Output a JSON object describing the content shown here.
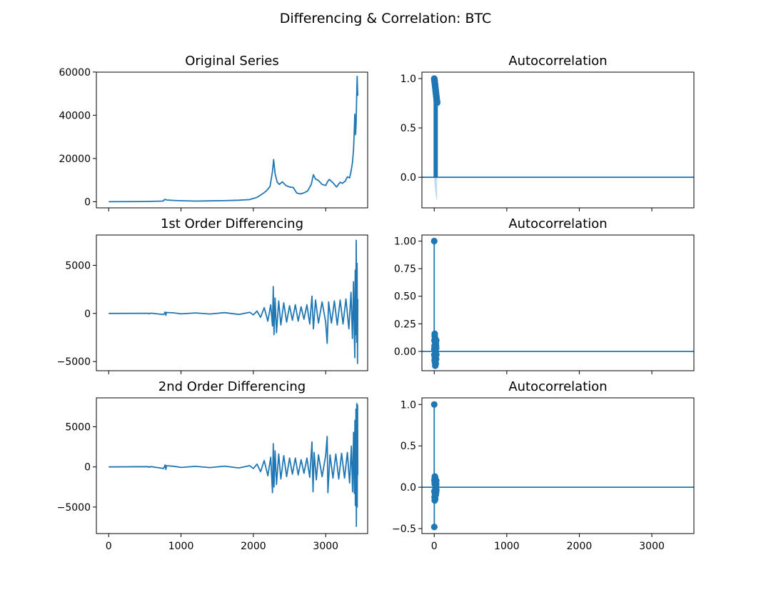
{
  "figure": {
    "suptitle": "Differencing & Correlation: BTC",
    "series_color": "#1f77b4",
    "band_color": "#aed1e6"
  },
  "chart_data": [
    {
      "id": "orig",
      "type": "line",
      "title": "Original Series",
      "xlim": [
        -170,
        3580
      ],
      "ylim": [
        -2850,
        59950
      ],
      "yticks": [
        0,
        20000,
        40000,
        60000
      ],
      "ytick_labels": [
        "0",
        "20000",
        "40000",
        "60000"
      ],
      "xticks": [
        0,
        1000,
        2000,
        3000
      ],
      "xtick_labels": [],
      "series_points": [
        [
          0,
          0
        ],
        [
          500,
          100
        ],
        [
          750,
          300
        ],
        [
          780,
          1100
        ],
        [
          800,
          800
        ],
        [
          900,
          600
        ],
        [
          1000,
          450
        ],
        [
          1200,
          300
        ],
        [
          1400,
          380
        ],
        [
          1600,
          500
        ],
        [
          1800,
          700
        ],
        [
          1950,
          1000
        ],
        [
          2050,
          2000
        ],
        [
          2120,
          3500
        ],
        [
          2180,
          5000
        ],
        [
          2230,
          7000
        ],
        [
          2265,
          14000
        ],
        [
          2280,
          19500
        ],
        [
          2300,
          13000
        ],
        [
          2330,
          9000
        ],
        [
          2360,
          8000
        ],
        [
          2400,
          9200
        ],
        [
          2450,
          7500
        ],
        [
          2500,
          6800
        ],
        [
          2550,
          6600
        ],
        [
          2600,
          4000
        ],
        [
          2650,
          3600
        ],
        [
          2700,
          4100
        ],
        [
          2750,
          5000
        ],
        [
          2800,
          8000
        ],
        [
          2830,
          12500
        ],
        [
          2860,
          10500
        ],
        [
          2900,
          9800
        ],
        [
          2950,
          8000
        ],
        [
          3000,
          7500
        ],
        [
          3030,
          9500
        ],
        [
          3050,
          10300
        ],
        [
          3100,
          8800
        ],
        [
          3150,
          6800
        ],
        [
          3200,
          9000
        ],
        [
          3230,
          8500
        ],
        [
          3270,
          9500
        ],
        [
          3300,
          11500
        ],
        [
          3330,
          11000
        ],
        [
          3350,
          14000
        ],
        [
          3370,
          18000
        ],
        [
          3385,
          24000
        ],
        [
          3395,
          33000
        ],
        [
          3402,
          40500
        ],
        [
          3408,
          36000
        ],
        [
          3413,
          31000
        ],
        [
          3420,
          36000
        ],
        [
          3428,
          48000
        ],
        [
          3435,
          58000
        ],
        [
          3440,
          52000
        ],
        [
          3444,
          49000
        ]
      ]
    },
    {
      "id": "acf_orig",
      "type": "stem",
      "title": "Autocorrelation",
      "xlim": [
        -170,
        3580
      ],
      "ylim": [
        -0.31,
        1.065
      ],
      "yticks": [
        0,
        0.5,
        1
      ],
      "ytick_labels": [
        "0.0",
        "0.5",
        "1.0"
      ],
      "xticks": [
        0,
        1000,
        2000,
        3000
      ],
      "xtick_labels": [],
      "acf_values": [
        1.0,
        0.995,
        0.99,
        0.985,
        0.98,
        0.975,
        0.97,
        0.965,
        0.955,
        0.95,
        0.945,
        0.94,
        0.93,
        0.925,
        0.92,
        0.91,
        0.905,
        0.9,
        0.89,
        0.885,
        0.88,
        0.87,
        0.865,
        0.86,
        0.85,
        0.845,
        0.84,
        0.83,
        0.825,
        0.82,
        0.81,
        0.805,
        0.8,
        0.79,
        0.785,
        0.78,
        0.775,
        0.77,
        0.765,
        0.76,
        0.755
      ],
      "conf_band_lower": [
        -0.03,
        -0.04,
        -0.05,
        -0.06,
        -0.07,
        -0.08,
        -0.09,
        -0.1,
        -0.11,
        -0.12,
        -0.125,
        -0.13,
        -0.14,
        -0.145,
        -0.15,
        -0.155,
        -0.16,
        -0.165,
        -0.17,
        -0.175,
        -0.18,
        -0.185,
        -0.19,
        -0.195,
        -0.2,
        -0.2,
        -0.205,
        -0.21,
        -0.21,
        -0.215,
        -0.215,
        -0.22,
        -0.22,
        -0.225,
        -0.225,
        -0.23,
        -0.23,
        -0.23,
        -0.235,
        -0.235,
        -0.24
      ]
    },
    {
      "id": "diff1",
      "type": "line",
      "title": "1st Order Differencing",
      "xlim": [
        -170,
        3580
      ],
      "ylim": [
        -5950,
        8150
      ],
      "yticks": [
        -5000,
        0,
        5000
      ],
      "ytick_labels": [
        "−5000",
        "0",
        "5000"
      ],
      "xticks": [
        0,
        1000,
        2000,
        3000
      ],
      "xtick_labels": [],
      "series_points": [
        [
          0,
          0
        ],
        [
          550,
          20
        ],
        [
          560,
          -40
        ],
        [
          580,
          30
        ],
        [
          760,
          -120
        ],
        [
          780,
          150
        ],
        [
          790,
          -200
        ],
        [
          800,
          100
        ],
        [
          900,
          60
        ],
        [
          1000,
          -40
        ],
        [
          1200,
          50
        ],
        [
          1400,
          -60
        ],
        [
          1600,
          80
        ],
        [
          1800,
          -100
        ],
        [
          1950,
          120
        ],
        [
          2000,
          -150
        ],
        [
          2050,
          250
        ],
        [
          2100,
          -400
        ],
        [
          2150,
          600
        ],
        [
          2200,
          -800
        ],
        [
          2240,
          900
        ],
        [
          2265,
          -1300
        ],
        [
          2275,
          2800
        ],
        [
          2285,
          -2200
        ],
        [
          2300,
          1600
        ],
        [
          2320,
          -2000
        ],
        [
          2350,
          1300
        ],
        [
          2380,
          -1200
        ],
        [
          2420,
          1100
        ],
        [
          2460,
          -900
        ],
        [
          2500,
          800
        ],
        [
          2540,
          -700
        ],
        [
          2580,
          900
        ],
        [
          2620,
          -800
        ],
        [
          2660,
          700
        ],
        [
          2700,
          -600
        ],
        [
          2740,
          900
        ],
        [
          2780,
          -1100
        ],
        [
          2810,
          1800
        ],
        [
          2830,
          -1600
        ],
        [
          2860,
          1400
        ],
        [
          2900,
          -1000
        ],
        [
          2950,
          1200
        ],
        [
          3000,
          -900
        ],
        [
          3020,
          -3100
        ],
        [
          3040,
          1200
        ],
        [
          3080,
          -1000
        ],
        [
          3120,
          1300
        ],
        [
          3160,
          -1200
        ],
        [
          3200,
          1400
        ],
        [
          3240,
          -1100
        ],
        [
          3280,
          1500
        ],
        [
          3320,
          -1600
        ],
        [
          3350,
          2200
        ],
        [
          3370,
          -2600
        ],
        [
          3385,
          3300
        ],
        [
          3395,
          -2000
        ],
        [
          3402,
          -4600
        ],
        [
          3408,
          4500
        ],
        [
          3415,
          -2200
        ],
        [
          3422,
          7600
        ],
        [
          3428,
          -3000
        ],
        [
          3434,
          5200
        ],
        [
          3440,
          -5200
        ],
        [
          3444,
          1500
        ]
      ]
    },
    {
      "id": "acf_diff1",
      "type": "stem",
      "title": "Autocorrelation",
      "xlim": [
        -170,
        3580
      ],
      "ylim": [
        -0.175,
        1.055
      ],
      "yticks": [
        0,
        0.25,
        0.5,
        0.75,
        1
      ],
      "ytick_labels": [
        "0.00",
        "0.25",
        "0.50",
        "0.75",
        "1.00"
      ],
      "xticks": [
        0,
        1000,
        2000,
        3000
      ],
      "xtick_labels": [],
      "acf_values": [
        1.0,
        0.02,
        -0.03,
        0.1,
        0.05,
        -0.08,
        0.14,
        0.16,
        -0.05,
        0.09,
        -0.1,
        0.12,
        -0.06,
        0.04,
        -0.13,
        0.08,
        0.03,
        -0.09,
        0.11,
        -0.04,
        0.06,
        0.02,
        -0.11,
        0.07,
        -0.02,
        0.05,
        -0.07,
        0.03,
        0.1,
        -0.03
      ],
      "conf_band_lower": [
        -0.03,
        -0.032,
        -0.034,
        -0.036,
        -0.038,
        -0.04,
        -0.042,
        -0.044,
        -0.046,
        -0.048,
        -0.05,
        -0.05,
        -0.052,
        -0.052,
        -0.054,
        -0.054,
        -0.056,
        -0.056,
        -0.058,
        -0.058,
        -0.06,
        -0.06,
        -0.06,
        -0.062,
        -0.062,
        -0.062,
        -0.064,
        -0.064,
        -0.064,
        -0.065
      ]
    },
    {
      "id": "diff2",
      "type": "line",
      "title": "2nd Order Differencing",
      "xlim": [
        -170,
        3580
      ],
      "ylim": [
        -8300,
        8600
      ],
      "yticks": [
        -5000,
        0,
        5000
      ],
      "ytick_labels": [
        "−5000",
        "0",
        "5000"
      ],
      "xticks": [
        0,
        1000,
        2000,
        3000
      ],
      "xtick_labels": [
        "0",
        "1000",
        "2000",
        "3000"
      ],
      "series_points": [
        [
          0,
          0
        ],
        [
          550,
          30
        ],
        [
          560,
          -60
        ],
        [
          580,
          40
        ],
        [
          760,
          -200
        ],
        [
          780,
          250
        ],
        [
          790,
          -300
        ],
        [
          800,
          150
        ],
        [
          900,
          80
        ],
        [
          1000,
          -60
        ],
        [
          1200,
          70
        ],
        [
          1400,
          -80
        ],
        [
          1600,
          100
        ],
        [
          1800,
          -130
        ],
        [
          1950,
          160
        ],
        [
          2000,
          -200
        ],
        [
          2050,
          350
        ],
        [
          2100,
          -600
        ],
        [
          2150,
          800
        ],
        [
          2200,
          -1100
        ],
        [
          2240,
          1200
        ],
        [
          2265,
          -3200
        ],
        [
          2275,
          2900
        ],
        [
          2285,
          -2500
        ],
        [
          2300,
          2000
        ],
        [
          2320,
          -2200
        ],
        [
          2350,
          1600
        ],
        [
          2380,
          -1500
        ],
        [
          2420,
          1400
        ],
        [
          2460,
          -1200
        ],
        [
          2500,
          1100
        ],
        [
          2540,
          -900
        ],
        [
          2580,
          1100
        ],
        [
          2620,
          -1000
        ],
        [
          2660,
          900
        ],
        [
          2700,
          -800
        ],
        [
          2740,
          1100
        ],
        [
          2780,
          -1300
        ],
        [
          2810,
          3100
        ],
        [
          2825,
          -3100
        ],
        [
          2840,
          1800
        ],
        [
          2870,
          -1600
        ],
        [
          2900,
          1500
        ],
        [
          2950,
          -1200
        ],
        [
          3000,
          1400
        ],
        [
          3020,
          3800
        ],
        [
          3030,
          -3200
        ],
        [
          3060,
          1500
        ],
        [
          3100,
          -1400
        ],
        [
          3140,
          1600
        ],
        [
          3180,
          -1500
        ],
        [
          3220,
          1700
        ],
        [
          3260,
          -1400
        ],
        [
          3300,
          1800
        ],
        [
          3330,
          -2000
        ],
        [
          3355,
          2600
        ],
        [
          3372,
          -3100
        ],
        [
          3386,
          4300
        ],
        [
          3396,
          -3300
        ],
        [
          3404,
          5800
        ],
        [
          3410,
          -4800
        ],
        [
          3418,
          7200
        ],
        [
          3424,
          -7400
        ],
        [
          3430,
          7900
        ],
        [
          3436,
          -5000
        ],
        [
          3441,
          7700
        ],
        [
          3444,
          -1000
        ]
      ]
    },
    {
      "id": "acf_diff2",
      "type": "stem",
      "title": "Autocorrelation",
      "xlim": [
        -170,
        3580
      ],
      "ylim": [
        -0.56,
        1.08
      ],
      "yticks": [
        -0.5,
        0,
        0.5,
        1
      ],
      "ytick_labels": [
        "−0.5",
        "0.0",
        "0.5",
        "1.0"
      ],
      "xticks": [
        0,
        1000,
        2000,
        3000
      ],
      "xtick_labels": [
        "0",
        "1000",
        "2000",
        "3000"
      ],
      "acf_values": [
        1.0,
        -0.48,
        -0.05,
        0.08,
        -0.12,
        0.1,
        0.04,
        -0.16,
        0.13,
        -0.07,
        0.06,
        -0.1,
        0.12,
        -0.03,
        -0.14,
        0.09,
        -0.02,
        0.05,
        -0.08,
        0.07,
        -0.05,
        0.03,
        -0.09,
        0.06,
        -0.04,
        0.02,
        -0.06,
        0.04,
        0.08,
        -0.03
      ],
      "conf_band_lower": [
        -0.03,
        -0.034,
        -0.036,
        -0.038,
        -0.04,
        -0.042,
        -0.044,
        -0.046,
        -0.048,
        -0.05,
        -0.05,
        -0.052,
        -0.052,
        -0.054,
        -0.054,
        -0.056,
        -0.056,
        -0.058,
        -0.058,
        -0.06,
        -0.06,
        -0.06,
        -0.062,
        -0.062,
        -0.062,
        -0.064,
        -0.064,
        -0.064,
        -0.065,
        -0.065
      ]
    }
  ]
}
